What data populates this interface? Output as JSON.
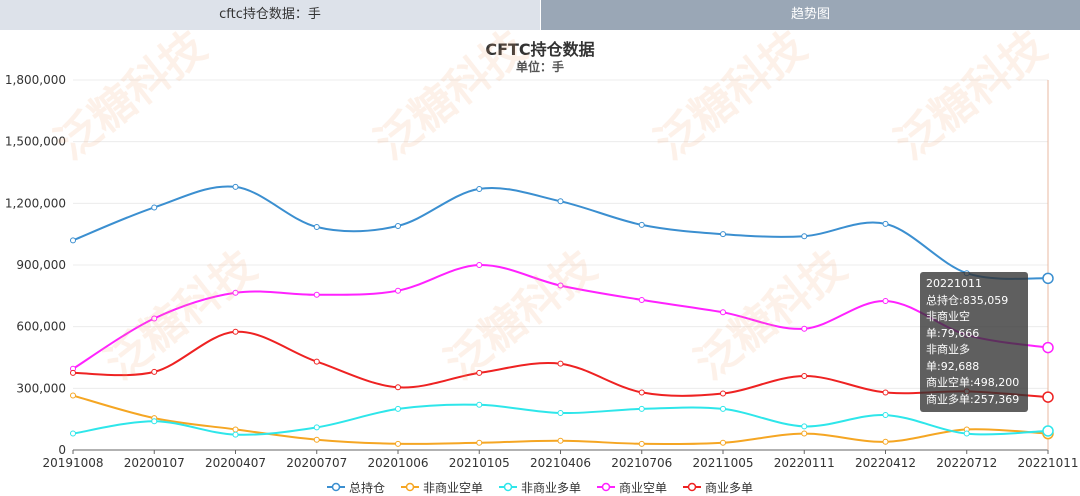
{
  "tabs": [
    {
      "label": "cftc持仓数据：手"
    },
    {
      "label": "趋势图"
    }
  ],
  "watermark": "泛糖科技",
  "chart_data": {
    "type": "line",
    "title": "CFTC持仓数据",
    "subtitle": "单位：手",
    "ylim": [
      0,
      1800000
    ],
    "yticks": [
      "0",
      "300,000",
      "600,000",
      "900,000",
      "1,200,000",
      "1,500,000",
      "1,800,000"
    ],
    "x_ticks": [
      "20191008",
      "20200107",
      "20200407",
      "20200707",
      "20201006",
      "20210105",
      "20210406",
      "20210706",
      "20211005",
      "20220111",
      "20220412",
      "20220712",
      "20221011"
    ],
    "grid": true,
    "legend_position": "bottom",
    "series": [
      {
        "name": "总持仓",
        "color": "#3b8fd0",
        "values": [
          1020000,
          1180000,
          1280000,
          1085000,
          1090000,
          1270000,
          1210000,
          1095000,
          1050000,
          1040000,
          1100000,
          860000,
          835059
        ]
      },
      {
        "name": "非商业空单",
        "color": "#f5a623",
        "values": [
          265000,
          155000,
          100000,
          50000,
          30000,
          35000,
          45000,
          30000,
          35000,
          80000,
          40000,
          100000,
          79666
        ]
      },
      {
        "name": "非商业多单",
        "color": "#2ee6ea",
        "values": [
          80000,
          140000,
          75000,
          110000,
          200000,
          220000,
          180000,
          200000,
          200000,
          115000,
          170000,
          80000,
          92688
        ]
      },
      {
        "name": "商业空单",
        "color": "#ff22ff",
        "values": [
          395000,
          640000,
          765000,
          755000,
          775000,
          900000,
          800000,
          730000,
          670000,
          590000,
          725000,
          560000,
          498200
        ]
      },
      {
        "name": "商业多单",
        "color": "#ee2222",
        "values": [
          375000,
          380000,
          575000,
          430000,
          305000,
          375000,
          420000,
          280000,
          275000,
          360000,
          280000,
          285000,
          257369
        ]
      }
    ],
    "tooltip": {
      "date": "20221011",
      "lines": [
        "总持仓:835,059",
        "非商业空单:79,666",
        "非商业多单:92,688",
        "商业空单:498,200",
        "商业多单:257,369"
      ]
    }
  }
}
